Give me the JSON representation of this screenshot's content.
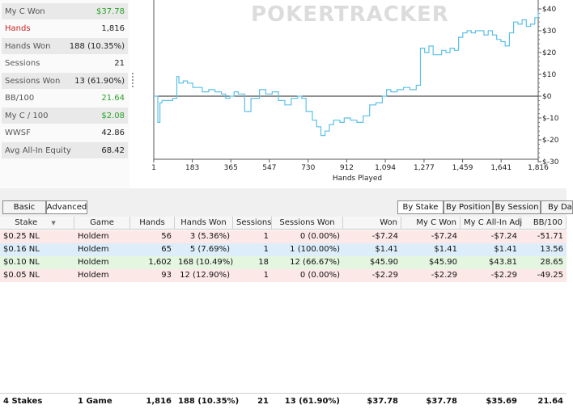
{
  "stats": [
    {
      "label": "My C Won",
      "value": "$37.78",
      "valueColor": "green"
    },
    {
      "label": "Hands",
      "value": "1,816",
      "labelColor": "red"
    },
    {
      "label": "Hands Won",
      "value": "188 (10.35%)"
    },
    {
      "label": "Sessions",
      "value": "21"
    },
    {
      "label": "Sessions Won",
      "value": "13 (61.90%)"
    },
    {
      "label": "BB/100",
      "value": "21.64",
      "valueColor": "green"
    },
    {
      "label": "My C / 100",
      "value": "$2.08",
      "valueColor": "green"
    },
    {
      "label": "WWSF",
      "value": "42.86"
    },
    {
      "label": "Avg All-In Equity",
      "value": "68.42"
    }
  ],
  "watermark": "POKERTRACKER",
  "chart_data": {
    "type": "line",
    "xlabel": "Hands Played",
    "ylabel": "",
    "xlim": [
      1,
      1816
    ],
    "ylim": [
      -30,
      42
    ],
    "x_ticks": [
      "1",
      "183",
      "365",
      "547",
      "730",
      "912",
      "1,094",
      "1,277",
      "1,459",
      "1,641",
      "1,816"
    ],
    "y_ticks": [
      "$40",
      "$30",
      "$20",
      "$10",
      "$0",
      "$-10",
      "$-20",
      "$-30"
    ],
    "series": [
      {
        "color": "#5bc0e8",
        "x": [
          1,
          20,
          30,
          40,
          55,
          70,
          90,
          110,
          120,
          140,
          160,
          185,
          200,
          230,
          260,
          290,
          320,
          340,
          360,
          380,
          400,
          430,
          460,
          500,
          530,
          560,
          590,
          620,
          650,
          680,
          700,
          720,
          750,
          770,
          790,
          810,
          830,
          850,
          880,
          900,
          930,
          960,
          990,
          1020,
          1050,
          1080,
          1100,
          1120,
          1150,
          1180,
          1210,
          1240,
          1260,
          1280,
          1300,
          1320,
          1340,
          1360,
          1380,
          1400,
          1420,
          1440,
          1460,
          1480,
          1500,
          1520,
          1540,
          1560,
          1580,
          1600,
          1620,
          1640,
          1660,
          1680,
          1700,
          1720,
          1740,
          1760,
          1780,
          1800,
          1816
        ],
        "values": [
          0,
          -12,
          -3,
          -2,
          -2,
          -2,
          -1,
          9,
          6,
          7,
          6,
          4,
          4,
          2,
          3,
          2,
          1,
          -1,
          0,
          2,
          1,
          -7,
          -1,
          3,
          1,
          2,
          -2,
          -4,
          -1,
          0,
          -1,
          -7,
          -11,
          -14,
          -18,
          -16,
          -13,
          -11,
          -12,
          -10,
          -11,
          -12,
          -9,
          -4,
          -3,
          0,
          3,
          2,
          3,
          4,
          3,
          5,
          22,
          20,
          23,
          19,
          19,
          21,
          20,
          22,
          21,
          27,
          29,
          30,
          29,
          30,
          30,
          28,
          30,
          28,
          26,
          25,
          23,
          29,
          34,
          33,
          35,
          32,
          33,
          36,
          39
        ]
      }
    ]
  },
  "view_tabs": [
    "Basic",
    "Advanced"
  ],
  "group_tabs": [
    "By Stake",
    "By Position",
    "By Session",
    "By Da"
  ],
  "table": {
    "headers": [
      "Stake",
      "Game",
      "Hands",
      "Hands Won",
      "Sessions",
      "Sessions Won",
      "Won",
      "My C Won",
      "My C All-In Adj",
      "BB/100"
    ],
    "rows": [
      {
        "stake": "$0.25 NL",
        "game": "Holdem",
        "hands": "56",
        "hands_won": "3 (5.36%)",
        "sessions": "1",
        "sessions_won": "0 (0.00%)",
        "won": "-$7.24",
        "myc": "-$7.24",
        "allin": "-$7.24",
        "bb": "-51.71",
        "bg": "#fde8e8",
        "neg": true
      },
      {
        "stake": "$0.16 NL",
        "game": "Holdem",
        "hands": "65",
        "hands_won": "5 (7.69%)",
        "sessions": "1",
        "sessions_won": "1 (100.00%)",
        "won": "$1.41",
        "myc": "$1.41",
        "allin": "$1.41",
        "bb": "13.56",
        "bg": "#ddeefa",
        "neg": false
      },
      {
        "stake": "$0.10 NL",
        "game": "Holdem",
        "hands": "1,602",
        "hands_won": "168 (10.49%)",
        "sessions": "18",
        "sessions_won": "12 (66.67%)",
        "won": "$45.90",
        "myc": "$45.90",
        "allin": "$43.81",
        "bb": "28.65",
        "bg": "#e4f5e0",
        "neg": false
      },
      {
        "stake": "$0.05 NL",
        "game": "Holdem",
        "hands": "93",
        "hands_won": "12 (12.90%)",
        "sessions": "1",
        "sessions_won": "0 (0.00%)",
        "won": "-$2.29",
        "myc": "-$2.29",
        "allin": "-$2.29",
        "bb": "-49.25",
        "bg": "#fde8e8",
        "neg": true
      }
    ],
    "totals": {
      "stake": "4 Stakes",
      "game": "1 Game",
      "hands": "1,816",
      "hands_won": "188 (10.35%)",
      "sessions": "21",
      "sessions_won": "13 (61.90%)",
      "won": "$37.78",
      "myc": "$37.78",
      "allin": "$35.69",
      "bb": "21.64"
    }
  },
  "colors": {
    "positive": "#27a227",
    "negative": "#cc2222",
    "line": "#5bc0e8"
  }
}
